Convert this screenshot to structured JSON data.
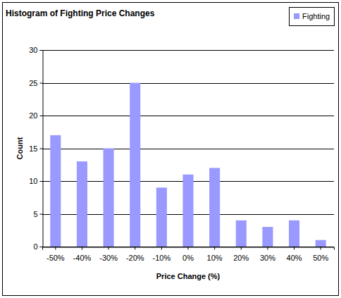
{
  "chart_data": {
    "type": "bar",
    "title": "Histogram of Fighting Price Changes",
    "x_label": "Price Change (%)",
    "y_label": "Count",
    "categories": [
      "-50%",
      "-40%",
      "-30%",
      "-20%",
      "-10%",
      "0%",
      "10%",
      "20%",
      "30%",
      "40%",
      "50%"
    ],
    "series": [
      {
        "name": "Fighting",
        "color": "#9999ff",
        "values": [
          17,
          13,
          15,
          25,
          9,
          11,
          12,
          4,
          3,
          4,
          1
        ]
      }
    ],
    "ylim": [
      0,
      30
    ],
    "yticks": [
      0,
      5,
      10,
      15,
      20,
      25,
      30
    ],
    "grid": true,
    "legend": "top-right"
  }
}
